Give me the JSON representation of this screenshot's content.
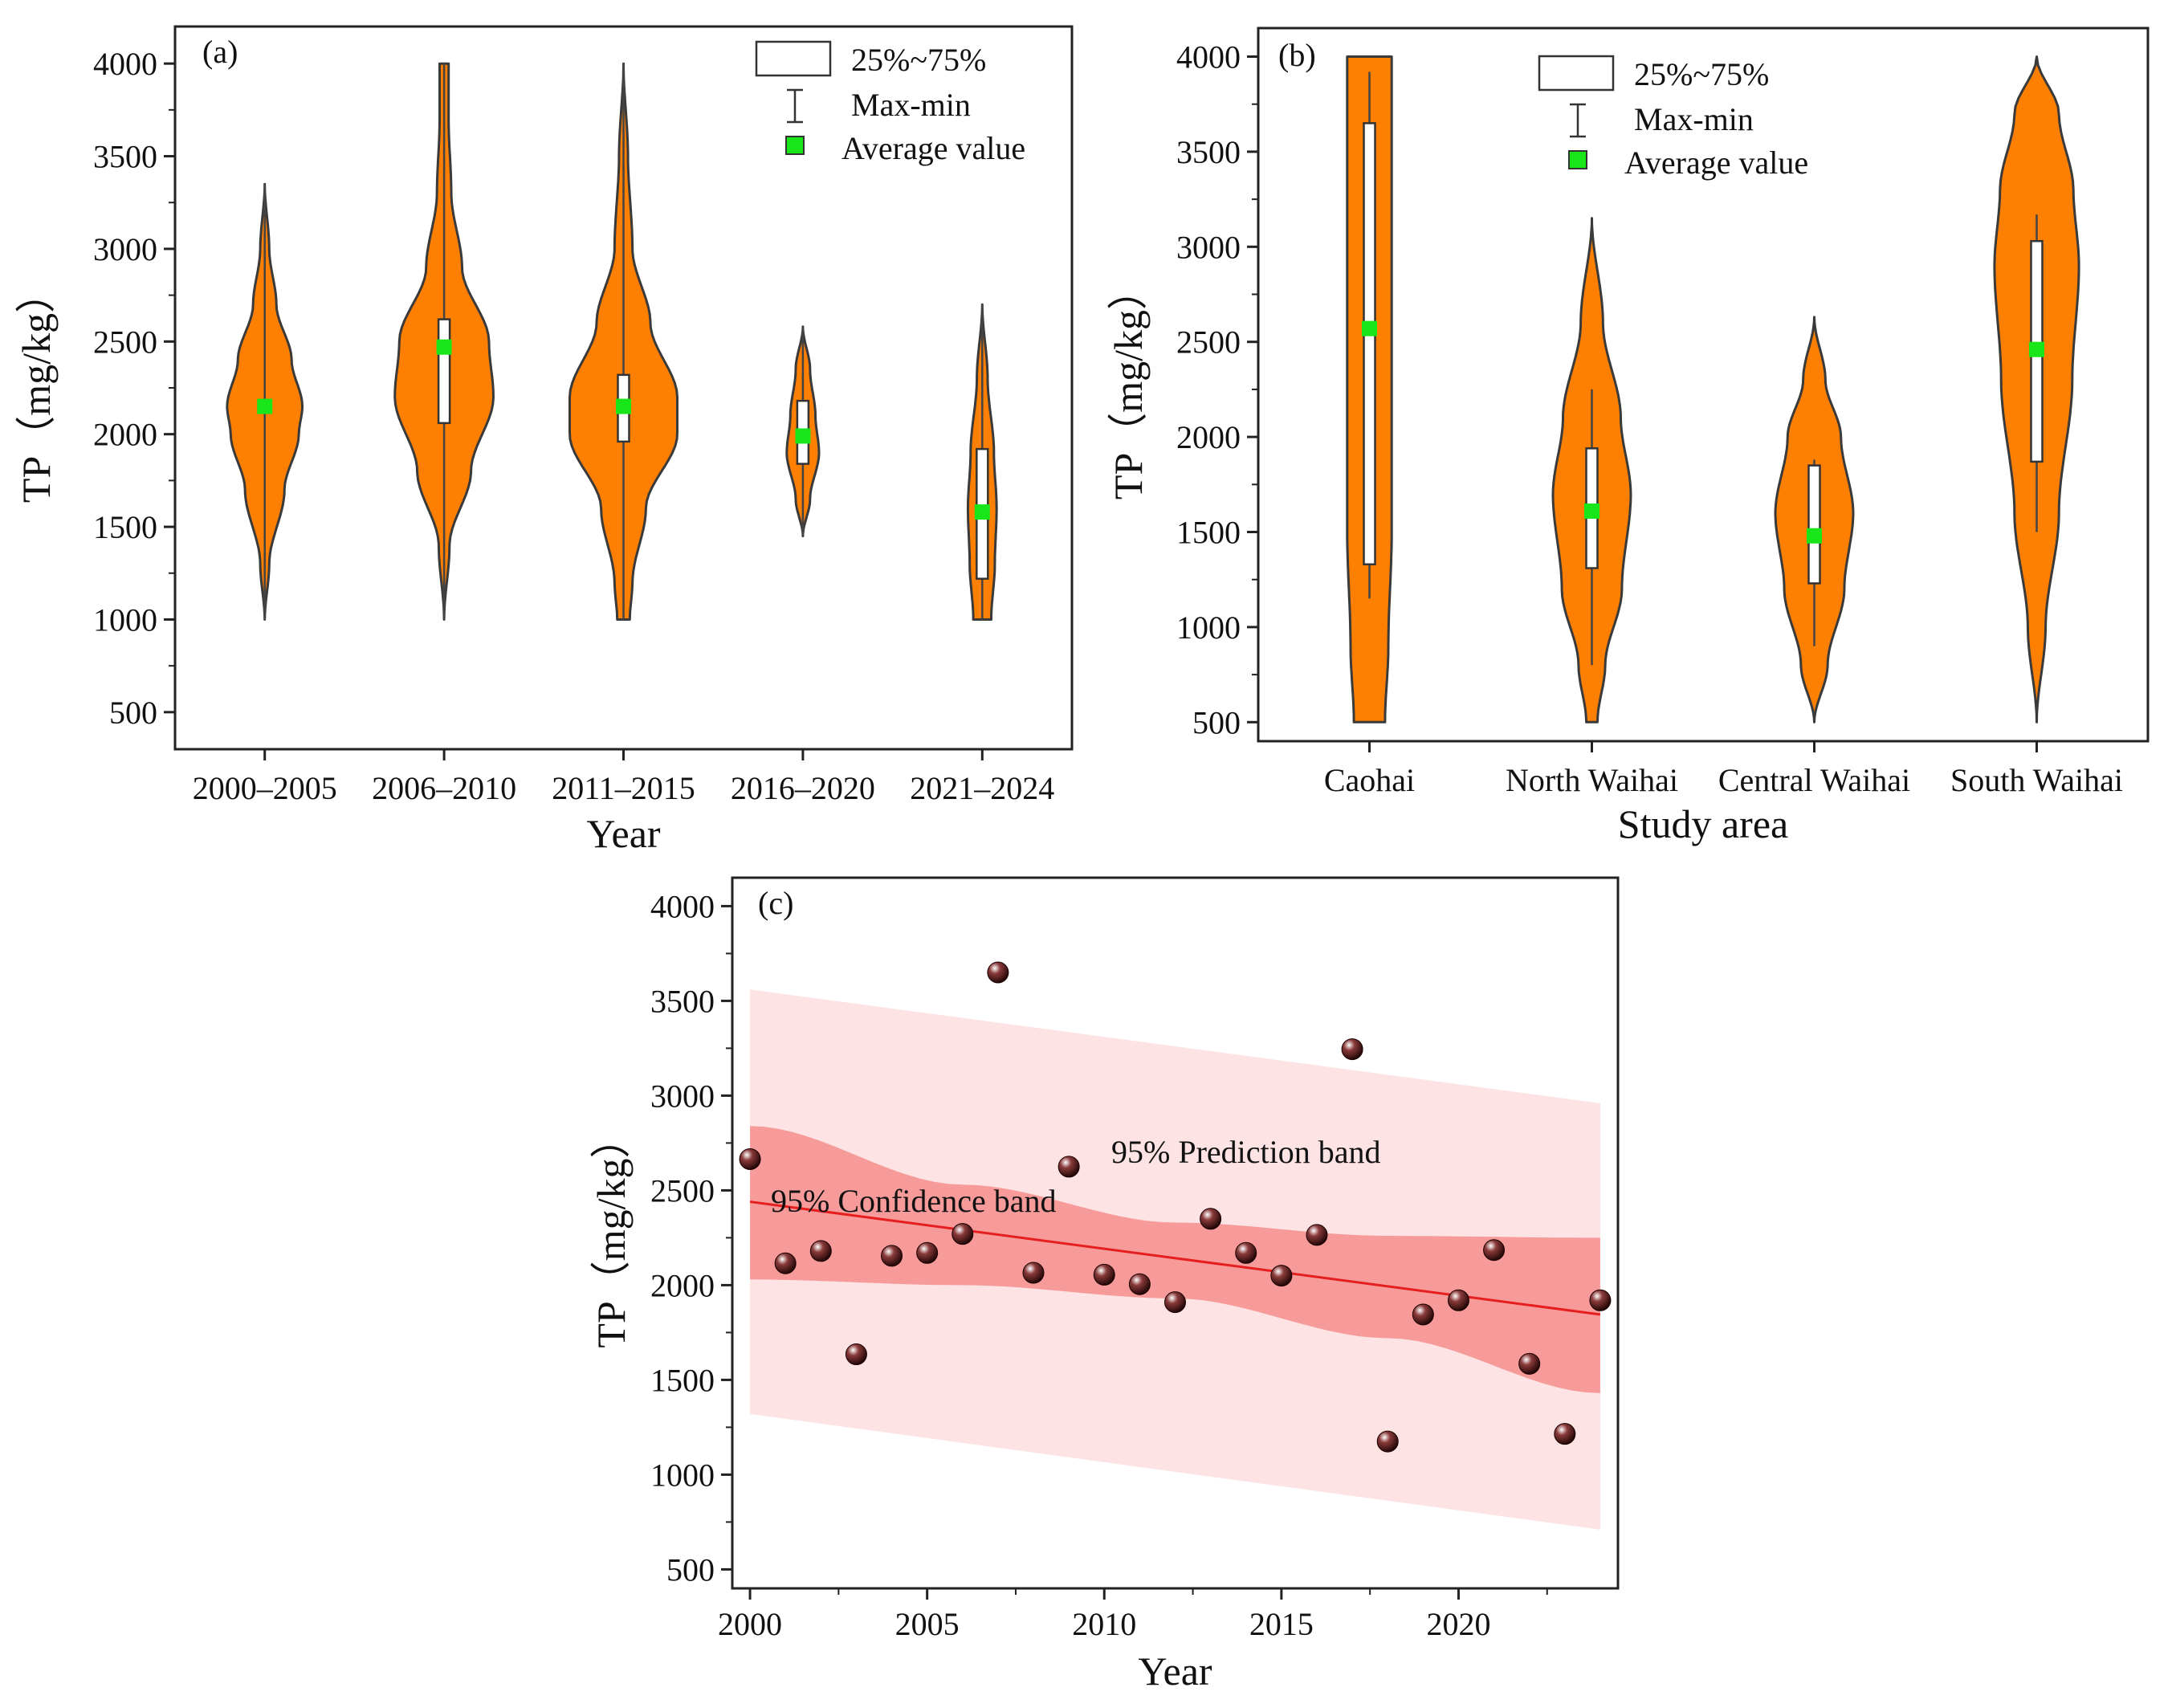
{
  "colors": {
    "violin": "#ff7f00",
    "violin_stroke": "#3a3a3a",
    "box": "#ffffff",
    "mean": "#19e619",
    "trend": "#e61e1e",
    "confidence": "#f79a9a",
    "prediction": "#fde3e3",
    "point": "#5a0e0e"
  },
  "chart_data": [
    {
      "panel": "(a)",
      "type": "violin",
      "xlabel": "Year",
      "ylabel": "TP（mg/kg）",
      "ylim": [
        300,
        4200
      ],
      "yticks": [
        500,
        1000,
        1500,
        2000,
        2500,
        3000,
        3500,
        4000
      ],
      "legend": {
        "position": "top-right",
        "box_label": "25%~75%",
        "whisker_label": "Max-min",
        "mean_label": "Average value"
      },
      "categories": [
        "2000–2005",
        "2006–2010",
        "2011–2015",
        "2016–2020",
        "2021–2024"
      ],
      "groups": [
        {
          "category": "2000–2005",
          "min": 1000,
          "max": 3350,
          "q1": 2150,
          "q3": 2150,
          "mean": 2150,
          "density": [
            [
              1000,
              0
            ],
            [
              1300,
              0.05
            ],
            [
              1700,
              0.22
            ],
            [
              2000,
              0.38
            ],
            [
              2150,
              0.42
            ],
            [
              2400,
              0.3
            ],
            [
              2700,
              0.13
            ],
            [
              3000,
              0.05
            ],
            [
              3350,
              0
            ]
          ]
        },
        {
          "category": "2006–2010",
          "min": 1000,
          "max": 4000,
          "q1": 2060,
          "q3": 2620,
          "mean": 2470,
          "density": [
            [
              1000,
              0
            ],
            [
              1400,
              0.06
            ],
            [
              1800,
              0.3
            ],
            [
              2200,
              0.55
            ],
            [
              2500,
              0.5
            ],
            [
              2900,
              0.2
            ],
            [
              3300,
              0.08
            ],
            [
              3700,
              0.05
            ],
            [
              4000,
              0.05
            ]
          ]
        },
        {
          "category": "2011–2015",
          "min": 1000,
          "max": 4000,
          "q1": 1960,
          "q3": 2320,
          "mean": 2150,
          "density": [
            [
              1000,
              0.07
            ],
            [
              1200,
              0.1
            ],
            [
              1600,
              0.25
            ],
            [
              2000,
              0.6
            ],
            [
              2200,
              0.6
            ],
            [
              2600,
              0.3
            ],
            [
              3000,
              0.1
            ],
            [
              3500,
              0.05
            ],
            [
              4000,
              0
            ]
          ]
        },
        {
          "category": "2016–2020",
          "min": 1450,
          "max": 2580,
          "q1": 1840,
          "q3": 2180,
          "mean": 1990,
          "density": [
            [
              1450,
              0
            ],
            [
              1650,
              0.08
            ],
            [
              1900,
              0.18
            ],
            [
              2100,
              0.14
            ],
            [
              2350,
              0.08
            ],
            [
              2580,
              0
            ]
          ]
        },
        {
          "category": "2021–2024",
          "min": 1000,
          "max": 2700,
          "q1": 1220,
          "q3": 1920,
          "mean": 1580,
          "density": [
            [
              1000,
              0.1
            ],
            [
              1300,
              0.14
            ],
            [
              1600,
              0.16
            ],
            [
              1900,
              0.13
            ],
            [
              2300,
              0.06
            ],
            [
              2700,
              0
            ]
          ]
        }
      ]
    },
    {
      "panel": "(b)",
      "type": "violin",
      "xlabel": "Study area",
      "ylabel": "TP（mg/kg）",
      "ylim": [
        400,
        4150
      ],
      "yticks": [
        500,
        1000,
        1500,
        2000,
        2500,
        3000,
        3500,
        4000
      ],
      "legend": {
        "position": "top-right",
        "box_label": "25%~75%",
        "whisker_label": "Max-min",
        "mean_label": "Average value"
      },
      "categories": [
        "Caohai",
        "North Waihai",
        "Central Waihai",
        "South Waihai"
      ],
      "groups": [
        {
          "category": "Caohai",
          "min": 1150,
          "max": 3920,
          "q1": 1330,
          "q3": 3650,
          "mean": 2570,
          "density": [
            [
              500,
              0.14
            ],
            [
              900,
              0.17
            ],
            [
              1500,
              0.2
            ],
            [
              2100,
              0.2
            ],
            [
              2700,
              0.2
            ],
            [
              3300,
              0.2
            ],
            [
              3800,
              0.2
            ],
            [
              4000,
              0.2
            ]
          ]
        },
        {
          "category": "North Waihai",
          "min": 800,
          "max": 2250,
          "q1": 1310,
          "q3": 1940,
          "mean": 1610,
          "density": [
            [
              500,
              0.05
            ],
            [
              800,
              0.12
            ],
            [
              1200,
              0.27
            ],
            [
              1700,
              0.35
            ],
            [
              2100,
              0.26
            ],
            [
              2600,
              0.1
            ],
            [
              3150,
              0
            ]
          ]
        },
        {
          "category": "Central Waihai",
          "min": 900,
          "max": 1880,
          "q1": 1230,
          "q3": 1850,
          "mean": 1480,
          "density": [
            [
              500,
              0
            ],
            [
              800,
              0.12
            ],
            [
              1200,
              0.27
            ],
            [
              1600,
              0.35
            ],
            [
              2000,
              0.24
            ],
            [
              2300,
              0.1
            ],
            [
              2630,
              0
            ]
          ]
        },
        {
          "category": "South Waihai",
          "min": 1500,
          "max": 3170,
          "q1": 1870,
          "q3": 3030,
          "mean": 2460,
          "density": [
            [
              500,
              0
            ],
            [
              1000,
              0.08
            ],
            [
              1600,
              0.2
            ],
            [
              2300,
              0.32
            ],
            [
              2900,
              0.38
            ],
            [
              3300,
              0.33
            ],
            [
              3700,
              0.2
            ],
            [
              4000,
              0
            ]
          ]
        }
      ]
    },
    {
      "panel": "(c)",
      "type": "scatter",
      "xlabel": "Year",
      "ylabel": "TP（mg/kg）",
      "xlim": [
        1999.5,
        2024.5
      ],
      "ylim": [
        400,
        4150
      ],
      "xticks": [
        2000,
        2005,
        2010,
        2015,
        2020
      ],
      "yticks": [
        500,
        1000,
        1500,
        2000,
        2500,
        3000,
        3500,
        4000
      ],
      "prediction_band_label": "95% Prediction band",
      "confidence_band_label": "95% Confidence band",
      "x": [
        2000,
        2001,
        2002,
        2003,
        2004,
        2005,
        2006,
        2007,
        2008,
        2009,
        2010,
        2011,
        2012,
        2013,
        2014,
        2015,
        2016,
        2017,
        2018,
        2019,
        2020,
        2021,
        2022,
        2023,
        2024
      ],
      "y": [
        2665,
        2115,
        2180,
        1635,
        2155,
        2170,
        2270,
        3650,
        2065,
        2625,
        2055,
        2005,
        1910,
        2350,
        2170,
        2050,
        2265,
        3245,
        1175,
        1845,
        1920,
        2185,
        1585,
        1215,
        1920
      ],
      "trend": {
        "x": [
          2000,
          2024
        ],
        "y": [
          2440,
          1845
        ]
      },
      "confidence_band": {
        "x": [
          2000,
          2006,
          2012,
          2018,
          2024
        ],
        "lower": [
          2030,
          2000,
          1930,
          1720,
          1430
        ],
        "upper": [
          2840,
          2530,
          2330,
          2260,
          2250
        ]
      },
      "prediction_band": {
        "x": [
          2000,
          2024
        ],
        "lower": [
          1320,
          710
        ],
        "upper": [
          3560,
          2960
        ]
      }
    }
  ]
}
